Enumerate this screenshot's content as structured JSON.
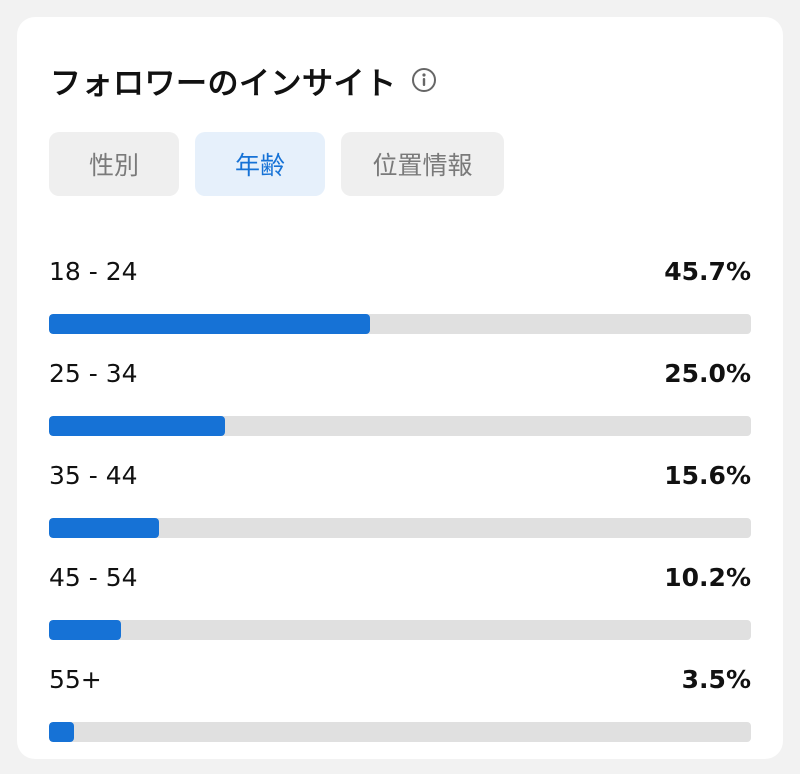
{
  "header": {
    "title": "フォロワーのインサイト",
    "info_icon": "info-circle-icon"
  },
  "tabs": [
    {
      "label": "性別",
      "active": false
    },
    {
      "label": "年齢",
      "active": true
    },
    {
      "label": "位置情報",
      "active": false
    }
  ],
  "colors": {
    "accent": "#1672d6",
    "track": "#e0e0e0",
    "active_tab_bg": "#e6f0fb"
  },
  "age_groups": [
    {
      "label": "18 - 24",
      "value": "45.7%",
      "percent": 45.7
    },
    {
      "label": "25 - 34",
      "value": "25.0%",
      "percent": 25.0
    },
    {
      "label": "35 - 44",
      "value": "15.6%",
      "percent": 15.6
    },
    {
      "label": "45 - 54",
      "value": "10.2%",
      "percent": 10.2
    },
    {
      "label": "55+",
      "value": "3.5%",
      "percent": 3.5
    }
  ]
}
